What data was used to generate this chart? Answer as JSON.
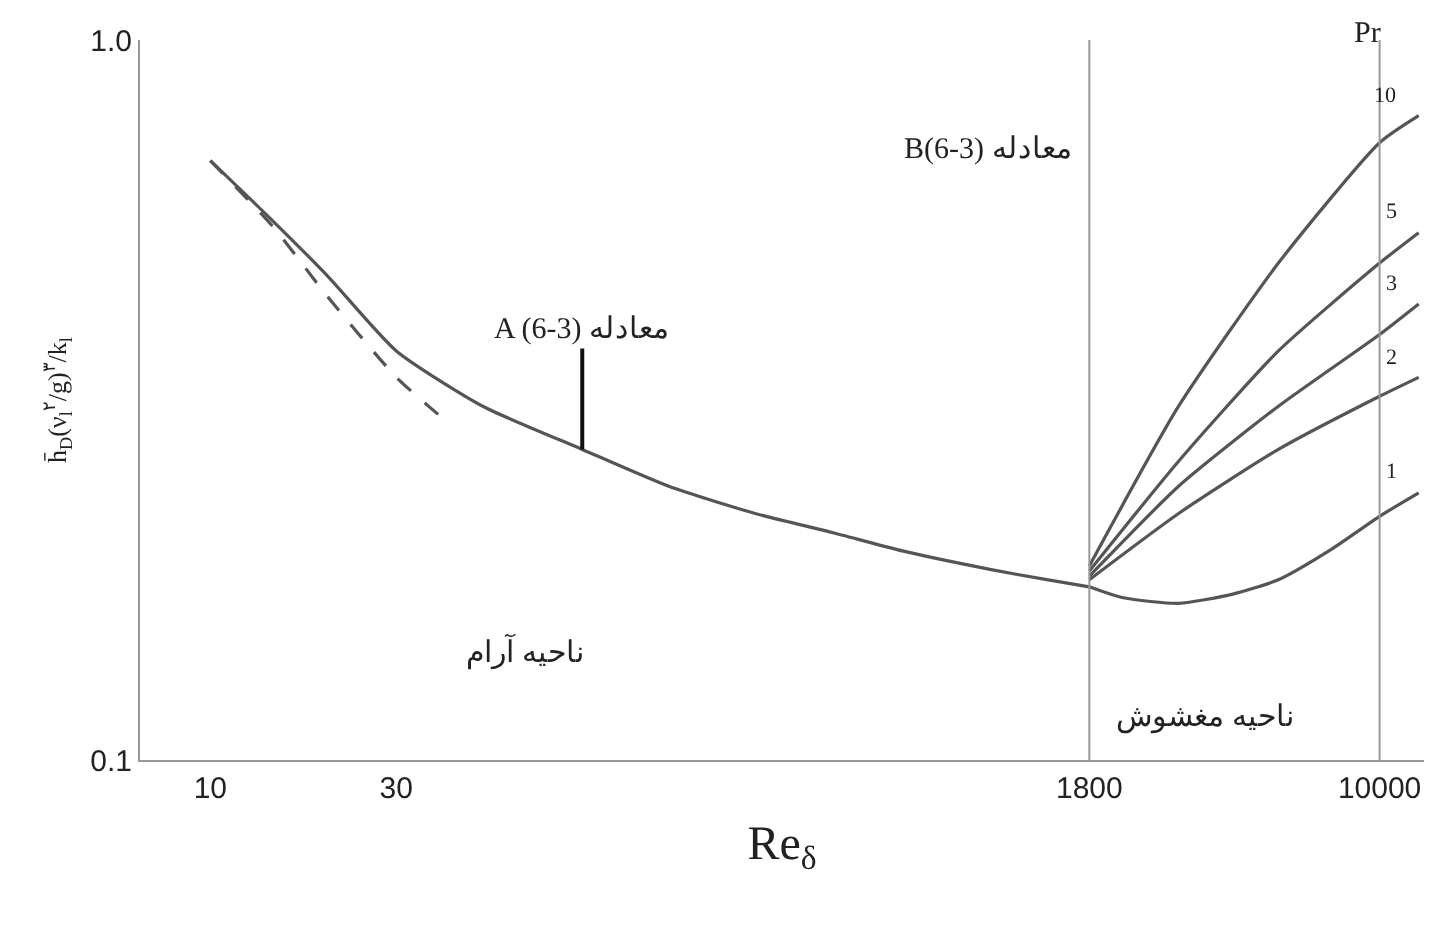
{
  "chart_data": {
    "type": "line",
    "xlabel": "Re$_{δ}$",
    "ylabel": "h̄$_{D}$(ν$_{l}$$^{۲}$/g)$^{۳}$/k$_{l}$",
    "log": "xy",
    "xlim": [
      6.6,
      13000
    ],
    "xticks": [
      10,
      30,
      1800,
      10000
    ],
    "ylim": [
      0.1,
      1.0
    ],
    "yticks": [
      0.1,
      {
        "value": 1.0,
        "label": "1.0"
      }
    ],
    "grid": false,
    "legend": false,
    "marker": "none",
    "series": [
      {
        "color": "#555555",
        "x": [
          10,
          14.5,
          20,
          30,
          50,
          90,
          150,
          250,
          394,
          600,
          1000,
          1400,
          1800
        ],
        "values": [
          0.68,
          0.56,
          0.47,
          0.37,
          0.31,
          0.27,
          0.24,
          0.22,
          0.207,
          0.195,
          0.184,
          0.178,
          0.174
        ]
      },
      {
        "color": "#555555",
        "line_style": "dashed",
        "x": [
          10,
          14.5,
          20,
          30,
          39
        ],
        "values": [
          0.68,
          0.55,
          0.44,
          0.34,
          0.3
        ]
      },
      {
        "name": "1",
        "color": "#555555",
        "x": [
          1800,
          2200,
          3050,
          4200,
          5500,
          7500,
          10000,
          12600
        ],
        "values": [
          0.174,
          0.168,
          0.165,
          0.17,
          0.178,
          0.196,
          0.218,
          0.235
        ]
      },
      {
        "name": "2",
        "color": "#555555",
        "x": [
          1800,
          3050,
          5500,
          10000,
          12600
        ],
        "values": [
          0.178,
          0.22,
          0.27,
          0.32,
          0.34
        ]
      },
      {
        "name": "3",
        "color": "#555555",
        "x": [
          1800,
          3050,
          5500,
          10000,
          12600
        ],
        "values": [
          0.18,
          0.24,
          0.31,
          0.39,
          0.43
        ]
      },
      {
        "name": "5",
        "color": "#555555",
        "x": [
          1800,
          3050,
          5500,
          10000,
          12600
        ],
        "values": [
          0.183,
          0.26,
          0.37,
          0.49,
          0.54
        ]
      },
      {
        "name": "10",
        "color": "#555555",
        "x": [
          1800,
          3050,
          5500,
          10000,
          12600
        ],
        "values": [
          0.186,
          0.31,
          0.49,
          0.72,
          0.785
        ]
      }
    ],
    "ref_lines": [
      {
        "axis": "x",
        "value": 1800,
        "color": "#999999"
      },
      {
        "axis": "x",
        "value": 10000,
        "color": "#999999"
      }
    ],
    "annotations": [
      {
        "text": "A (6-3) معادله",
        "x": 90,
        "y": 0.27
      },
      "B(6-3) معادله",
      "Pr",
      "ناحیه آرام",
      "ناحیه مغشوش"
    ]
  }
}
